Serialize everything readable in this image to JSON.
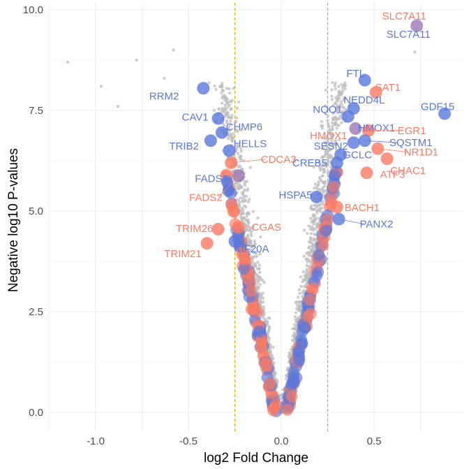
{
  "chart_data": {
    "type": "scatter",
    "title": "",
    "xlabel": "log2 Fold Change",
    "ylabel": "Negative log10 P-values",
    "xlim": [
      -1.25,
      0.95
    ],
    "ylim": [
      -0.55,
      10.1
    ],
    "x_ticks": [
      -1.0,
      -0.5,
      0.0,
      0.5
    ],
    "x_tick_labels": [
      "-1.0",
      "-0.5",
      "0.0",
      "0.5"
    ],
    "y_ticks": [
      0.0,
      2.5,
      5.0,
      7.5,
      10.0
    ],
    "y_tick_labels": [
      "0.0",
      "2.5",
      "5.0",
      "7.5",
      "10.0"
    ],
    "grid": true,
    "fc_thresholds": [
      -0.25,
      0.25
    ],
    "colors": {
      "background_points": "#bebebe",
      "up_genes": "#fa7b64",
      "down_genes": "#5a78dc",
      "threshold_line": "#e6a000",
      "grid": "#ebebeb"
    },
    "labeled_points": [
      {
        "gene": "SLC7A11",
        "x": 0.73,
        "y": 9.6,
        "group": "mixed",
        "labels": [
          {
            "text": "SLC7A11",
            "color": "orange"
          },
          {
            "text": "SLC7A11",
            "color": "blue"
          }
        ]
      },
      {
        "gene": "FTL",
        "x": 0.45,
        "y": 8.25,
        "group": "blue",
        "labels": [
          {
            "text": "FTL",
            "color": "blue"
          }
        ]
      },
      {
        "gene": "SAT1",
        "x": 0.51,
        "y": 7.95,
        "group": "orange",
        "labels": [
          {
            "text": "SAT1",
            "color": "orange"
          }
        ]
      },
      {
        "gene": "GDF15",
        "x": 0.88,
        "y": 7.42,
        "group": "blue",
        "labels": [
          {
            "text": "GDF15",
            "color": "blue"
          }
        ]
      },
      {
        "gene": "NEDD4L",
        "x": 0.39,
        "y": 7.55,
        "group": "blue",
        "labels": [
          {
            "text": "NEDD4L",
            "color": "blue"
          }
        ]
      },
      {
        "gene": "NQO1",
        "x": 0.36,
        "y": 7.35,
        "group": "blue",
        "labels": [
          {
            "text": "NQO1",
            "color": "blue"
          }
        ]
      },
      {
        "gene": "HMOX1",
        "x": 0.4,
        "y": 7.05,
        "group": "mixed",
        "labels": [
          {
            "text": "HMOX1",
            "color": "orange"
          },
          {
            "text": "HMOX1",
            "color": "blue"
          }
        ]
      },
      {
        "gene": "EGR1",
        "x": 0.47,
        "y": 7.0,
        "group": "orange",
        "labels": [
          {
            "text": "EGR1",
            "color": "orange"
          }
        ]
      },
      {
        "gene": "SESN2",
        "x": 0.39,
        "y": 6.7,
        "group": "blue",
        "labels": [
          {
            "text": "SESN2",
            "color": "blue"
          }
        ]
      },
      {
        "gene": "SQSTM1",
        "x": 0.45,
        "y": 6.75,
        "group": "blue",
        "labels": [
          {
            "text": "SQSTM1",
            "color": "blue"
          }
        ]
      },
      {
        "gene": "NR1D1",
        "x": 0.52,
        "y": 6.55,
        "group": "orange",
        "labels": [
          {
            "text": "NR1D1",
            "color": "orange"
          }
        ]
      },
      {
        "gene": "GCLC",
        "x": 0.32,
        "y": 6.4,
        "group": "blue",
        "labels": [
          {
            "text": "GCLC",
            "color": "blue"
          }
        ]
      },
      {
        "gene": "CREB5",
        "x": 0.3,
        "y": 6.2,
        "group": "blue",
        "labels": [
          {
            "text": "CREB5",
            "color": "blue"
          }
        ]
      },
      {
        "gene": "CHAC1",
        "x": 0.57,
        "y": 6.3,
        "group": "orange",
        "labels": [
          {
            "text": "CHAC1",
            "color": "orange"
          }
        ]
      },
      {
        "gene": "ATF3",
        "x": 0.46,
        "y": 5.95,
        "group": "orange",
        "labels": [
          {
            "text": "ATF3",
            "color": "orange"
          }
        ]
      },
      {
        "gene": "HSPA5",
        "x": 0.19,
        "y": 5.35,
        "group": "blue",
        "labels": [
          {
            "text": "HSPA5",
            "color": "blue"
          }
        ]
      },
      {
        "gene": "BACH1",
        "x": 0.3,
        "y": 5.1,
        "group": "orange",
        "labels": [
          {
            "text": "BACH1",
            "color": "orange"
          }
        ]
      },
      {
        "gene": "PANX2",
        "x": 0.31,
        "y": 4.8,
        "group": "blue",
        "labels": [
          {
            "text": "PANX2",
            "color": "blue"
          }
        ]
      },
      {
        "gene": "RRM2",
        "x": -0.42,
        "y": 8.05,
        "group": "blue",
        "labels": [
          {
            "text": "RRM2",
            "color": "blue"
          }
        ]
      },
      {
        "gene": "CAV1",
        "x": -0.34,
        "y": 7.3,
        "group": "blue",
        "labels": [
          {
            "text": "CAV1",
            "color": "blue"
          }
        ]
      },
      {
        "gene": "CHMP6",
        "x": -0.32,
        "y": 6.95,
        "group": "blue",
        "labels": [
          {
            "text": "CHMP6",
            "color": "blue"
          }
        ]
      },
      {
        "gene": "TRIB2",
        "x": -0.38,
        "y": 6.75,
        "group": "blue",
        "labels": [
          {
            "text": "TRIB2",
            "color": "blue"
          }
        ]
      },
      {
        "gene": "HELLS",
        "x": -0.28,
        "y": 6.5,
        "group": "blue",
        "labels": [
          {
            "text": "HELLS",
            "color": "blue"
          }
        ]
      },
      {
        "gene": "CDCA3",
        "x": -0.27,
        "y": 6.2,
        "group": "orange",
        "labels": [
          {
            "text": "CDCA3",
            "color": "orange"
          }
        ]
      },
      {
        "gene": "FADS2",
        "x": -0.23,
        "y": 5.88,
        "group": "mixed",
        "labels": [
          {
            "text": "FADS2",
            "color": "blue"
          },
          {
            "text": "FADS2",
            "color": "orange"
          }
        ]
      },
      {
        "gene": "TRIM26",
        "x": -0.34,
        "y": 4.55,
        "group": "orange",
        "labels": [
          {
            "text": "TRIM26",
            "color": "orange"
          }
        ]
      },
      {
        "gene": "CGAS",
        "x": -0.23,
        "y": 4.6,
        "group": "orange",
        "labels": [
          {
            "text": "CGAS",
            "color": "orange"
          }
        ]
      },
      {
        "gene": "TRIM21",
        "x": -0.4,
        "y": 4.2,
        "group": "orange",
        "labels": [
          {
            "text": "TRIM21",
            "color": "orange"
          }
        ]
      },
      {
        "gene": "KIF20A",
        "x": -0.25,
        "y": 4.25,
        "group": "blue",
        "labels": [
          {
            "text": "KIF20A",
            "color": "blue"
          }
        ]
      }
    ]
  }
}
